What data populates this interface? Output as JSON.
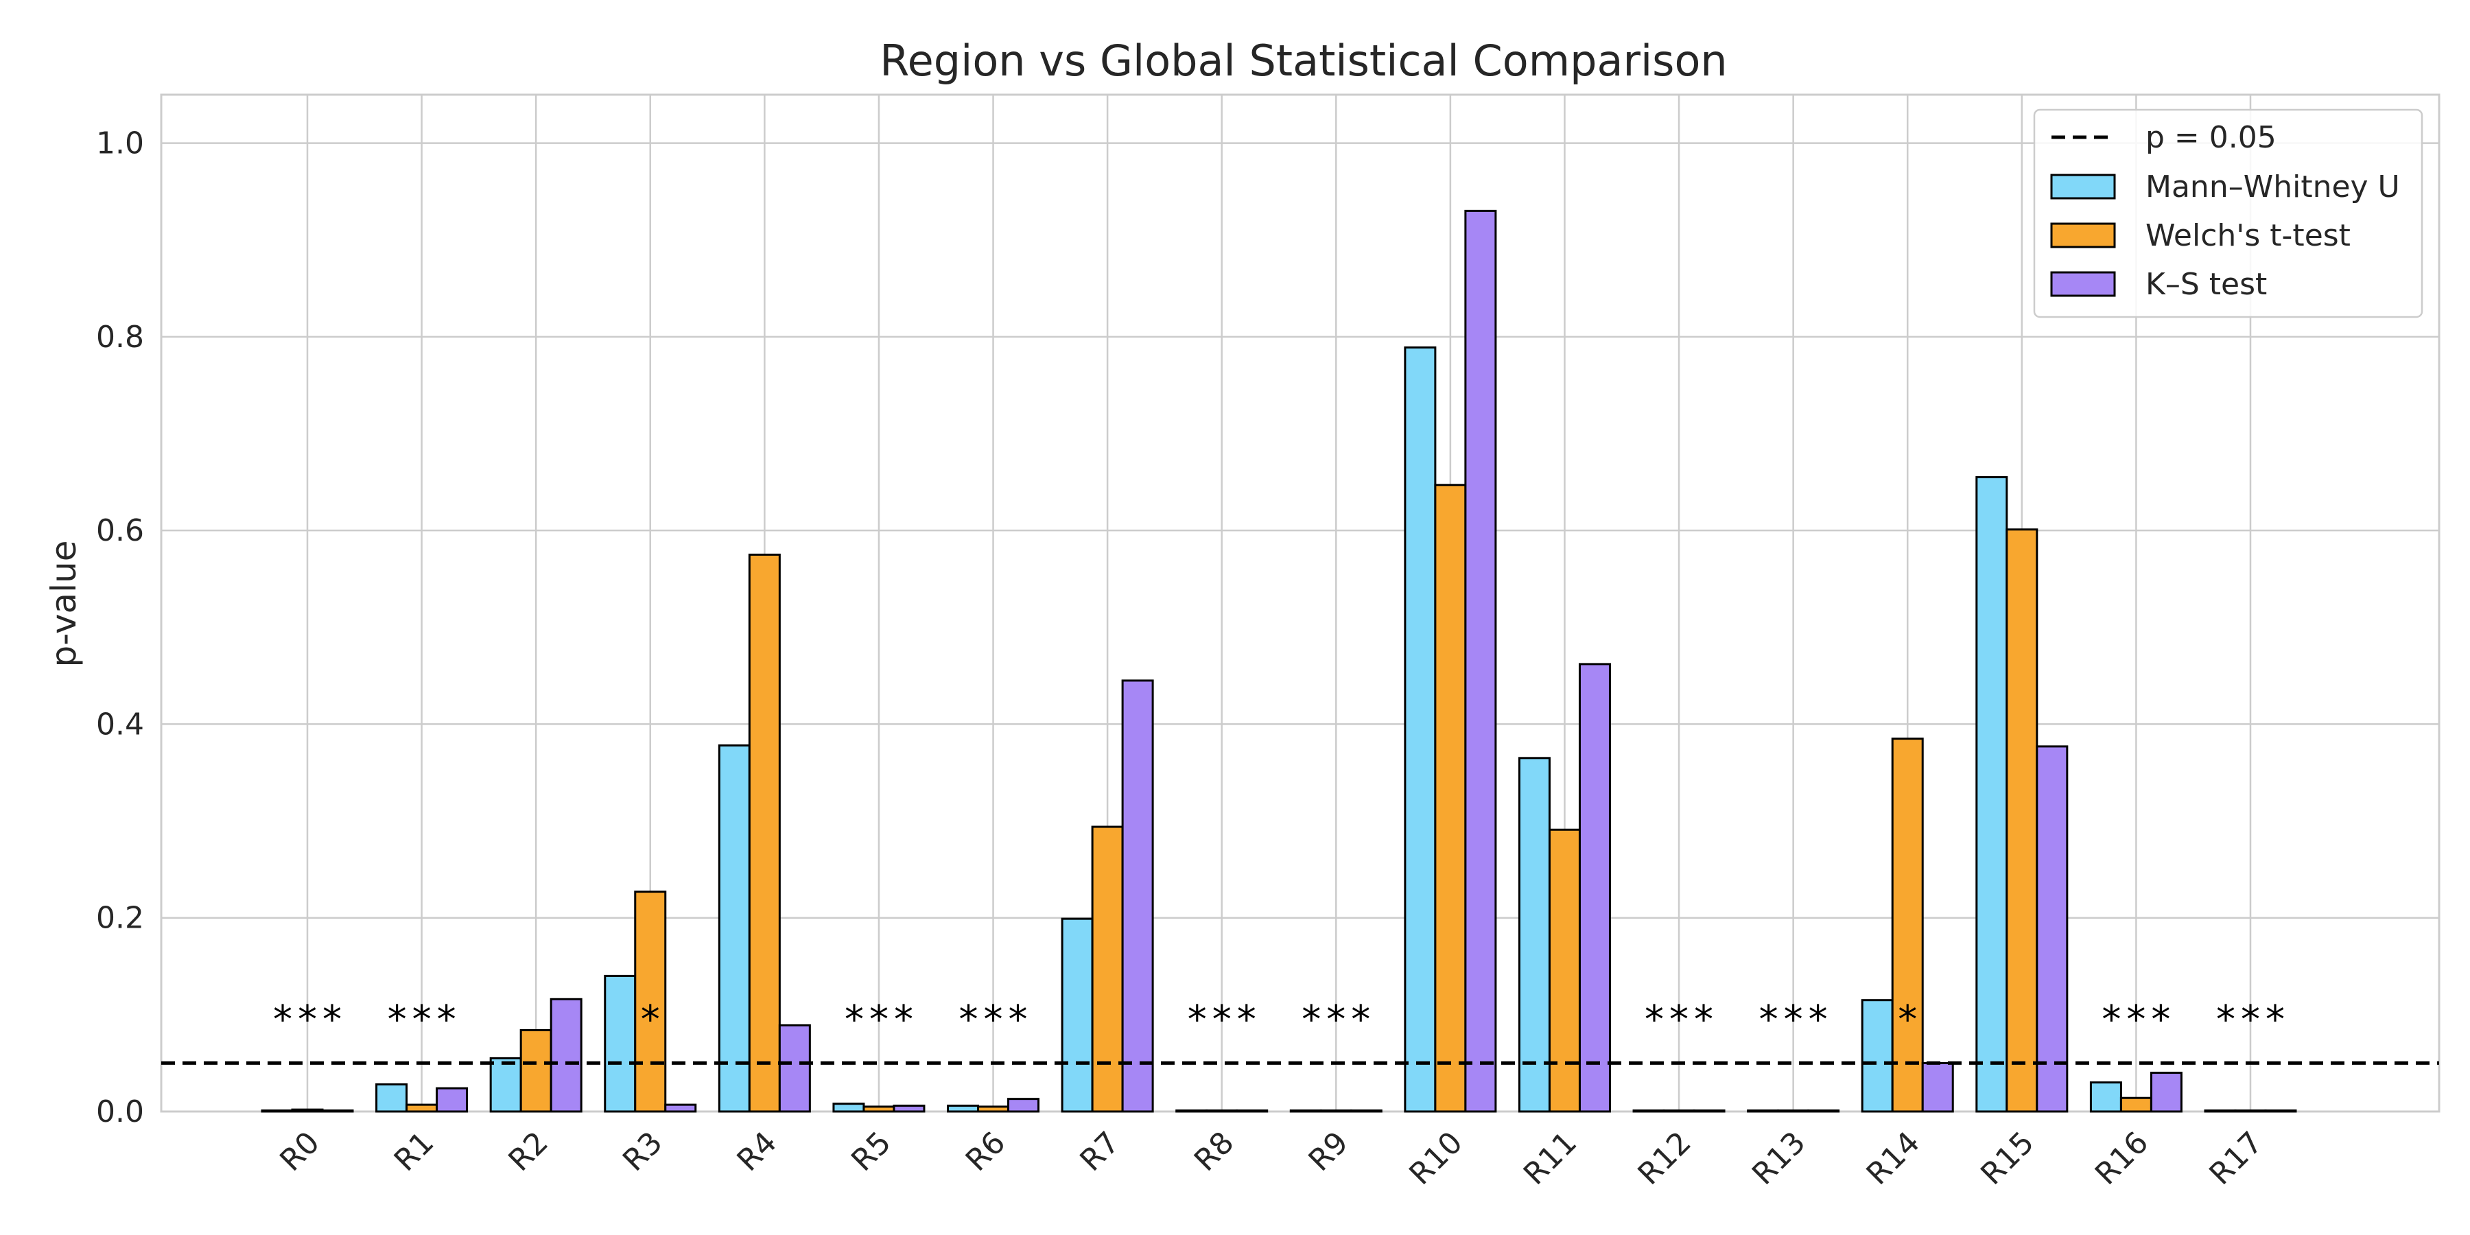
{
  "chart_data": {
    "type": "bar",
    "title": "Region vs Global Statistical Comparison",
    "xlabel": "",
    "ylabel": "p-value",
    "ylim": [
      0,
      1.05
    ],
    "yticks": [
      "0.0",
      "0.2",
      "0.4",
      "0.6",
      "0.8",
      "1.0"
    ],
    "grid": true,
    "legend_position": "top-right",
    "categories": [
      "R0",
      "R1",
      "R2",
      "R3",
      "R4",
      "R5",
      "R6",
      "R7",
      "R8",
      "R9",
      "R10",
      "R11",
      "R12",
      "R13",
      "R14",
      "R15",
      "R16",
      "R17"
    ],
    "series": [
      {
        "name": "Mann–Whitney U",
        "color": "#81d8f9",
        "values": [
          0.001,
          0.028,
          0.055,
          0.14,
          0.378,
          0.008,
          0.006,
          0.199,
          0.001,
          0.001,
          0.789,
          0.365,
          0.001,
          0.001,
          0.115,
          0.655,
          0.03,
          0.001
        ]
      },
      {
        "name": "Welch's t-test",
        "color": "#f8a72f",
        "values": [
          0.002,
          0.007,
          0.084,
          0.227,
          0.575,
          0.005,
          0.005,
          0.294,
          0.001,
          0.001,
          0.647,
          0.291,
          0.001,
          0.001,
          0.385,
          0.601,
          0.014,
          0.001
        ]
      },
      {
        "name": "K–S test",
        "color": "#a687f5",
        "values": [
          0.001,
          0.024,
          0.116,
          0.007,
          0.089,
          0.006,
          0.013,
          0.445,
          0.001,
          0.001,
          0.93,
          0.462,
          0.001,
          0.001,
          0.05,
          0.377,
          0.04,
          0.001
        ]
      }
    ],
    "threshold": {
      "label": "p = 0.05",
      "value": 0.05
    },
    "annotations": [
      "***",
      "***",
      "",
      "*",
      "",
      "***",
      "***",
      "",
      "***",
      "***",
      "",
      "",
      "***",
      "***",
      "*",
      "",
      "***",
      "***"
    ]
  }
}
